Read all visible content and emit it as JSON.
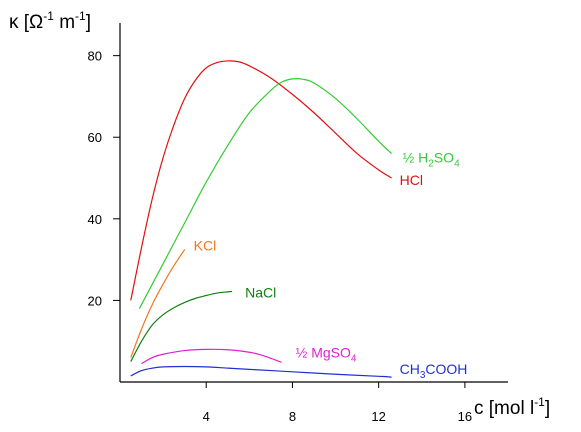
{
  "chart_data": {
    "type": "line",
    "ylabel": {
      "base": "κ [Ω",
      "sup1": "-1",
      "mid": " m",
      "sup2": "-1",
      "end": "]"
    },
    "xlabel": {
      "base": "c [mol l",
      "sup1": "-1",
      "end": "]"
    },
    "xlim": [
      0,
      18
    ],
    "ylim": [
      0,
      88
    ],
    "xticks": [
      4,
      8,
      12,
      16
    ],
    "yticks": [
      20,
      40,
      60,
      80
    ],
    "grid": false,
    "series": [
      {
        "name": "HCl",
        "label_parts": [
          {
            "t": "HCl"
          }
        ],
        "color": "#e01010",
        "x": [
          0.5,
          1.0,
          1.5,
          2.0,
          2.5,
          3.0,
          3.5,
          4.0,
          4.5,
          5.0,
          5.5,
          6.0,
          7.0,
          8.0,
          9.0,
          10.0,
          11.0,
          12.0,
          12.6
        ],
        "y": [
          20,
          33,
          45,
          55,
          63,
          69.5,
          74,
          77,
          78.3,
          78.7,
          78.5,
          77.5,
          74.5,
          70.5,
          66,
          61,
          56,
          52,
          50
        ]
      },
      {
        "name": "½ H2SO4",
        "label_parts": [
          {
            "t": "½ H"
          },
          {
            "t": "2",
            "sub": true
          },
          {
            "t": "SO"
          },
          {
            "t": "4",
            "sub": true
          }
        ],
        "color": "#33cc33",
        "x": [
          0.9,
          1.5,
          2.0,
          3.0,
          4.0,
          5.0,
          6.0,
          7.0,
          7.5,
          8.0,
          8.5,
          9.0,
          10.0,
          11.0,
          12.0,
          12.6
        ],
        "y": [
          18,
          24,
          29,
          39,
          49,
          58,
          66,
          71.5,
          73.5,
          74.3,
          74.2,
          73.3,
          69.5,
          64.5,
          59,
          56
        ]
      },
      {
        "name": "KCl",
        "label_parts": [
          {
            "t": "KCl"
          }
        ],
        "color": "#f07820",
        "x": [
          0.5,
          1.0,
          1.5,
          2.0,
          2.5,
          3.0
        ],
        "y": [
          6,
          13,
          19,
          24,
          28.5,
          32.5
        ]
      },
      {
        "name": "NaCl",
        "label_parts": [
          {
            "t": "NaCl"
          }
        ],
        "color": "#108010",
        "x": [
          0.5,
          1.0,
          1.5,
          2.0,
          2.5,
          3.0,
          3.5,
          4.0,
          4.5,
          5.0,
          5.2
        ],
        "y": [
          5,
          10,
          14,
          16.5,
          18.2,
          19.5,
          20.5,
          21.2,
          21.8,
          22.1,
          22.2
        ]
      },
      {
        "name": "½ MgSO4",
        "label_parts": [
          {
            "t": "½ MgSO"
          },
          {
            "t": "4",
            "sub": true
          }
        ],
        "color": "#e020d0",
        "x": [
          1.0,
          1.5,
          2.0,
          3.0,
          4.0,
          5.0,
          6.0,
          6.5,
          7.0,
          7.5
        ],
        "y": [
          4.5,
          6,
          6.8,
          7.7,
          8,
          7.9,
          7.3,
          6.7,
          5.8,
          4.8
        ]
      },
      {
        "name": "CH3COOH",
        "label_parts": [
          {
            "t": "CH"
          },
          {
            "t": "3",
            "sub": true
          },
          {
            "t": "COOH"
          }
        ],
        "color": "#2030d0",
        "x": [
          0.5,
          1.0,
          1.5,
          2.0,
          3.0,
          4.0,
          5.0,
          6.0,
          8.0,
          10.0,
          12.0,
          12.6
        ],
        "y": [
          1.5,
          2.8,
          3.4,
          3.7,
          3.8,
          3.7,
          3.4,
          3.1,
          2.5,
          1.9,
          1.4,
          1.2
        ]
      }
    ]
  }
}
